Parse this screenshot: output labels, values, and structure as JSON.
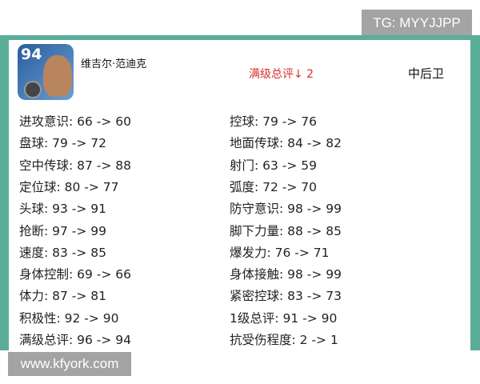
{
  "watermark_top": "TG: MYYJJPP",
  "watermark_bottom": "www.kfyork.com",
  "player": {
    "rating": "94",
    "name": "维吉尔·范迪克",
    "rating_change": "满级总评↓ 2",
    "position": "中后卫"
  },
  "stats_left": [
    "进攻意识: 66 -> 60",
    "盘球: 79 -> 72",
    "空中传球: 87 -> 88",
    "定位球: 80 -> 77",
    "头球: 93 -> 91",
    "抢断: 97 -> 99",
    "速度: 83 -> 85",
    "身体控制: 69 -> 66",
    "体力: 87 -> 81",
    "积极性: 92 -> 90",
    "满级总评: 96 -> 94"
  ],
  "stats_right": [
    "控球: 79 -> 76",
    "地面传球: 84 -> 82",
    "射门: 63 -> 59",
    "弧度: 72 -> 70",
    "防守意识: 98 -> 99",
    "脚下力量: 88 -> 85",
    "爆发力: 76 -> 71",
    "身体接触: 98 -> 99",
    "紧密控球: 83 -> 73",
    "1级总评: 91 -> 90",
    "抗受伤程度: 2 -> 1"
  ],
  "colors": {
    "frame": "#5aae98",
    "change": "#d63030"
  }
}
